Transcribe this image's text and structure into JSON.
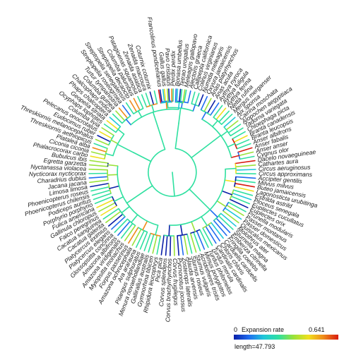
{
  "tips": [
    "Francolinus pondicerianus",
    "Gallus gallus",
    "Pavo cristatus",
    "Perdix perdix",
    "Bonasa umbellus",
    "Tetrao urogallus",
    "Meleagris gallopavo",
    "Alectoris graeca",
    "Callipepla californica",
    "Colinus virginianus",
    "Numida meleagris",
    "Oxyura jamaicensis",
    "Anas platyrhynchos",
    "Anas acuta",
    "Aythya nyroca",
    "Aythya fuligula",
    "Aythya ferina",
    "Netta rufina",
    "Mergus merganser",
    "Aix sponsa",
    "Cairina moschata",
    "Alopochen aegyptiaca",
    "Tadorna variegata",
    "Chloephaga picta",
    "Branta canadensis",
    "Branta leucopsis",
    "Anser albifrons",
    "Anser fabalis",
    "Anser anser",
    "Cygnus olor",
    "Dacelo novaeguineae",
    "Cathartes aura",
    "Circus aeruginosus",
    "Circus approximans",
    "Accipiter gentilis",
    "Milvus milvus",
    "Buteo jamaicensis",
    "Lagonosticta urubitinga",
    "Estrilda astrild",
    "Ploceus senegala",
    "Euplectes cucullatus",
    "Euplectes orix",
    "Prunella modularis",
    "Passer montanus",
    "Passer domesticus",
    "Quiscalus mexicanus",
    "Molothrus ater",
    "Sturnella magna",
    "Emberiza citrinella",
    "Fringilla coelebs",
    "Carduelis carduelis",
    "Chloris chloris",
    "Cardinalis cardinalis",
    "Turdus merula",
    "Turdus philomelos",
    "Mimus polyglottos",
    "Acridotheres tristis",
    "Sturnus vulgaris",
    "Sturnus roseus",
    "Alauda arvensis",
    "Zosterops lateralis",
    "Pycnonotus jocosus",
    "Corvus frugilegus",
    "Corvus brachyrhynchos",
    "Corvus splendens",
    "Pica pica",
    "Rhipidura leucophrys",
    "Gymnorhina tibicen",
    "Gallirallus australis",
    "Menura novaehollandiae",
    "Pitangus sulphuratus",
    "Ara ararauna",
    "Amazona ochrocephala",
    "Forpus passerinus",
    "Myiopsitta monachus",
    "Amazona viridigenalis",
    "Amazona albifrons",
    "Glossopsitta concinna",
    "Platycercus elegans",
    "Platycercus eximius",
    "Cacatua galerita",
    "Cacatua sanguinea",
    "Falco peregrinus",
    "Gallinula chloropus",
    "Fulica americana",
    "Porphyrio porphyrio",
    "Podiceps auritus",
    "Phoenicopterus chilensis",
    "Phoenicopterus roseus",
    "Limosa limosa",
    "Jacana jacana",
    "Charadrius dubius",
    "Nycticorax nycticorax",
    "Nyctanassa violacea",
    "Egretta garzetta",
    "Bubulcus ibis",
    "Phalacrocorax carbo",
    "Ciconia ciconia",
    "Platalea alba",
    "Threskiornis aethiopicus",
    "Threskiornis melanocephalus",
    "Eudocimus ruber",
    "Pelecanus onocrotalus",
    "Columba livia",
    "Ocyphaps lophotes",
    "Geopelia striata",
    "Phaps chalcoptera",
    "Chalcophaps indica",
    "Columba guinea",
    "Turtur tympanistria",
    "Streptopelia roseogrisea",
    "Streptopelia senegalensis",
    "Streptopelia decaocto",
    "Columba palumbus",
    "Patagioenas squamosa",
    "Zenaida asiatica",
    "Zenaida macroura",
    "Coturnix coturnix"
  ],
  "legend": {
    "min_label": "0",
    "title": "Expansion rate",
    "max_label": "0.641",
    "length_label": "length=47.793",
    "colors": [
      "#0a1fa8",
      "#1f6cf0",
      "#1fc7d9",
      "#2fe0a0",
      "#9ae23a",
      "#f0e01e",
      "#ef8a1a",
      "#d81b10"
    ]
  }
}
